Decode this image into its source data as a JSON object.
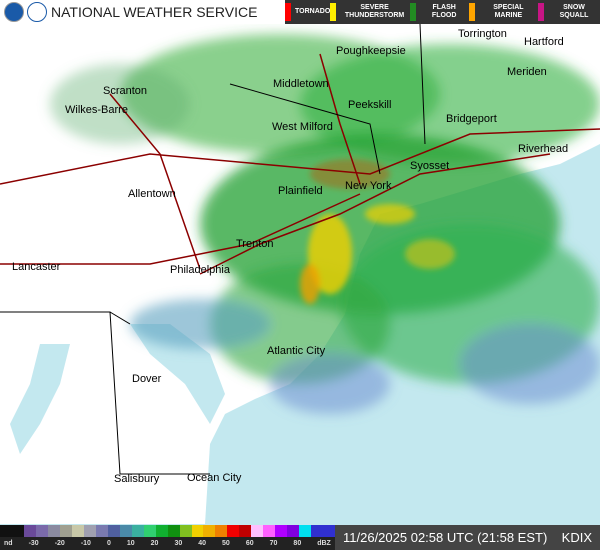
{
  "header": {
    "title": "NATIONAL WEATHER SERVICE",
    "logos": [
      "noaa-logo",
      "nws-logo"
    ]
  },
  "warning_legend": [
    {
      "label": "TORNADO",
      "color": "#ff0000"
    },
    {
      "label": "SEVERE THUNDERSTORM",
      "color": "#ffee00"
    },
    {
      "label": "FLASH FLOOD",
      "color": "#228b22"
    },
    {
      "label": "SPECIAL MARINE",
      "color": "#ffa500"
    },
    {
      "label": "SNOW SQUALL",
      "color": "#c71585"
    }
  ],
  "cities": [
    "Poughkeepsie",
    "Torrington",
    "Hartford",
    "Scranton",
    "Middletown",
    "Meriden",
    "Wilkes-Barre",
    "Peekskill",
    "West Milford",
    "Bridgeport",
    "Syosset",
    "Riverhead",
    "New York",
    "Plainfield",
    "Allentown",
    "Trenton",
    "Lancaster",
    "Philadelphia",
    "Atlantic City",
    "Dover",
    "Salisbury",
    "Ocean City"
  ],
  "scale": {
    "ticks": [
      "nd",
      "-30",
      "-20",
      "-10",
      "0",
      "10",
      "20",
      "30",
      "40",
      "50",
      "60",
      "70",
      "80",
      "dBZ"
    ],
    "colors": [
      "#111",
      "#111",
      "#6a4a9a",
      "#7a6aaa",
      "#8a8aa0",
      "#a0a090",
      "#c8c8a8",
      "#a0a0b0",
      "#7a7ab0",
      "#5060a0",
      "#4a8aa8",
      "#3ab0a0",
      "#30d070",
      "#10b030",
      "#109010",
      "#80c020",
      "#f0d000",
      "#f0b000",
      "#f08000",
      "#f00000",
      "#c00000",
      "#ffc0ff",
      "#ff60ff",
      "#b000ff",
      "#8000e0",
      "#00e0f0",
      "#3030d0",
      "#3030d0"
    ]
  },
  "timestamp": "11/26/2025 02:58 UTC (21:58 EST)",
  "station": "KDIX"
}
